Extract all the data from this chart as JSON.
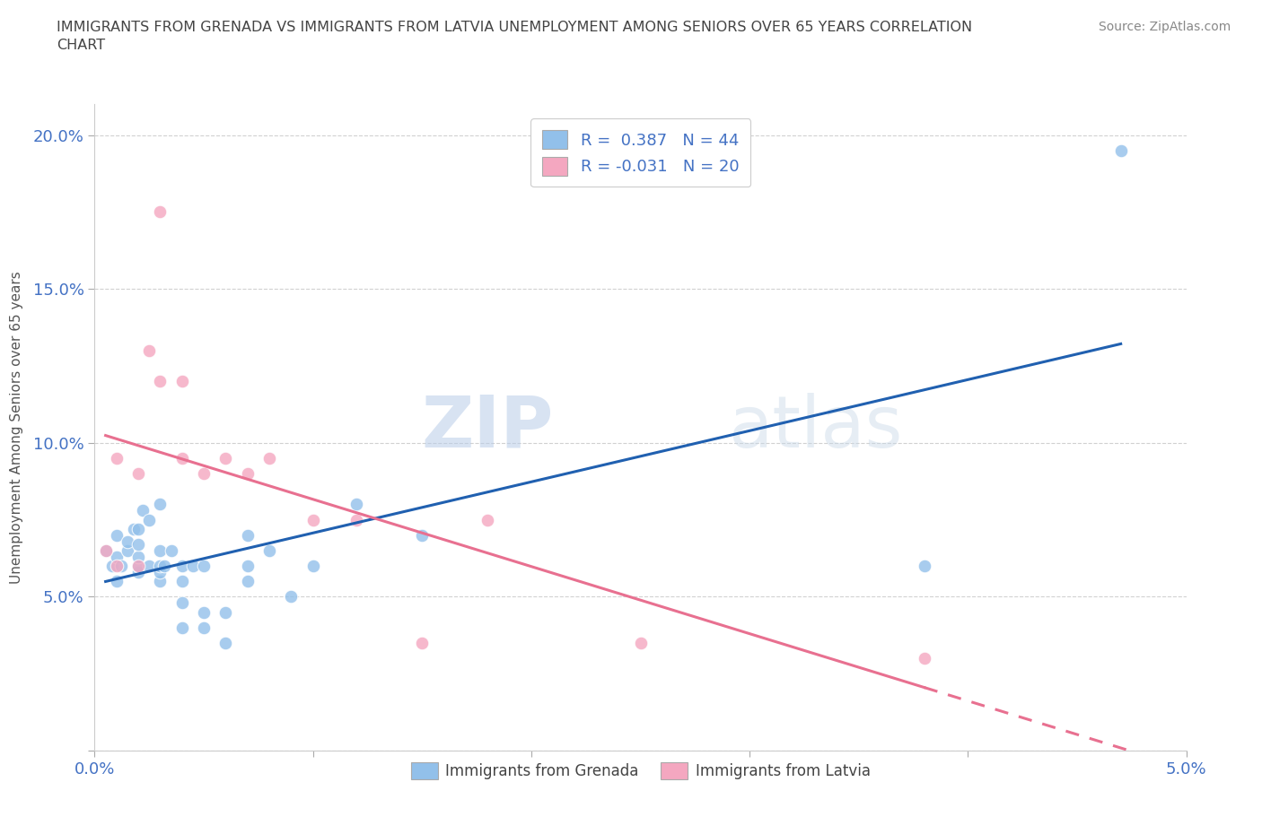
{
  "title": "IMMIGRANTS FROM GRENADA VS IMMIGRANTS FROM LATVIA UNEMPLOYMENT AMONG SENIORS OVER 65 YEARS CORRELATION\nCHART",
  "source": "Source: ZipAtlas.com",
  "ylabel": "Unemployment Among Seniors over 65 years",
  "xlim": [
    0.0,
    0.05
  ],
  "ylim": [
    0.0,
    0.21
  ],
  "grenada_color": "#92C0EA",
  "latvia_color": "#F4A7C0",
  "grenada_line_color": "#2060B0",
  "latvia_line_color": "#E87090",
  "grenada_R": 0.387,
  "grenada_N": 44,
  "latvia_R": -0.031,
  "latvia_N": 20,
  "legend_label_grenada": "Immigrants from Grenada",
  "legend_label_latvia": "Immigrants from Latvia",
  "watermark_zip": "ZIP",
  "watermark_atlas": "atlas",
  "background_color": "#ffffff",
  "grid_color": "#cccccc",
  "title_color": "#555555",
  "tick_color": "#4472C4",
  "grenada_x": [
    0.0005,
    0.0008,
    0.001,
    0.001,
    0.001,
    0.0012,
    0.0015,
    0.0015,
    0.0018,
    0.002,
    0.002,
    0.002,
    0.002,
    0.002,
    0.0022,
    0.0025,
    0.0025,
    0.003,
    0.003,
    0.003,
    0.003,
    0.003,
    0.0032,
    0.0035,
    0.004,
    0.004,
    0.004,
    0.004,
    0.0045,
    0.005,
    0.005,
    0.005,
    0.006,
    0.006,
    0.007,
    0.007,
    0.007,
    0.008,
    0.009,
    0.01,
    0.012,
    0.015,
    0.038,
    0.047
  ],
  "grenada_y": [
    0.065,
    0.06,
    0.055,
    0.063,
    0.07,
    0.06,
    0.065,
    0.068,
    0.072,
    0.058,
    0.06,
    0.063,
    0.067,
    0.072,
    0.078,
    0.06,
    0.075,
    0.055,
    0.058,
    0.06,
    0.065,
    0.08,
    0.06,
    0.065,
    0.04,
    0.048,
    0.055,
    0.06,
    0.06,
    0.04,
    0.045,
    0.06,
    0.035,
    0.045,
    0.055,
    0.06,
    0.07,
    0.065,
    0.05,
    0.06,
    0.08,
    0.07,
    0.06,
    0.195
  ],
  "latvia_x": [
    0.0005,
    0.001,
    0.001,
    0.002,
    0.002,
    0.0025,
    0.003,
    0.003,
    0.004,
    0.004,
    0.005,
    0.006,
    0.007,
    0.008,
    0.01,
    0.012,
    0.015,
    0.018,
    0.025,
    0.038
  ],
  "latvia_y": [
    0.065,
    0.06,
    0.095,
    0.06,
    0.09,
    0.13,
    0.12,
    0.175,
    0.095,
    0.12,
    0.09,
    0.095,
    0.09,
    0.095,
    0.075,
    0.075,
    0.035,
    0.075,
    0.035,
    0.03
  ]
}
